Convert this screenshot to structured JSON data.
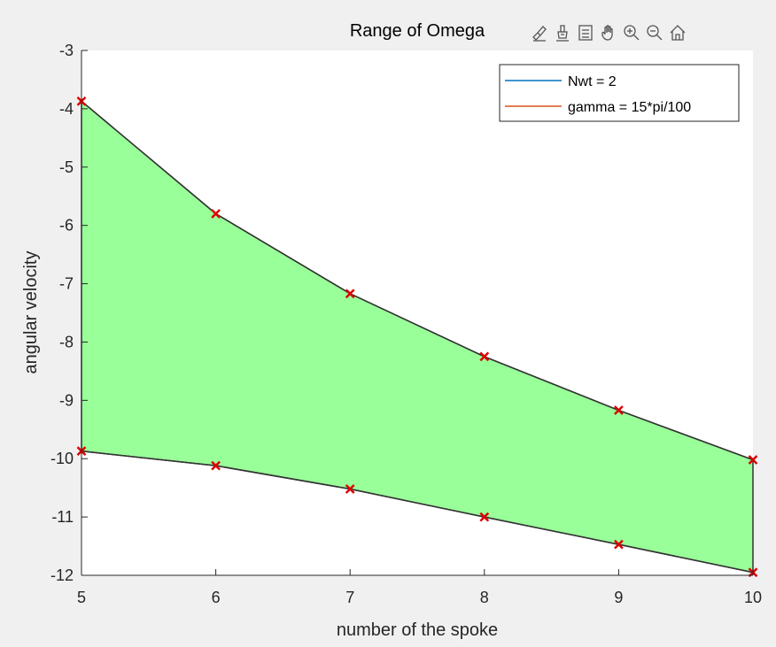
{
  "toolbar": {
    "buttons": [
      {
        "name": "brush-icon",
        "label": "Brush"
      },
      {
        "name": "paint-bucket-icon",
        "label": "Data tips"
      },
      {
        "name": "legend-toggle-icon",
        "label": "Legend"
      },
      {
        "name": "pan-hand-icon",
        "label": "Pan"
      },
      {
        "name": "zoom-in-icon",
        "label": "Zoom in"
      },
      {
        "name": "zoom-out-icon",
        "label": "Zoom out"
      },
      {
        "name": "home-icon",
        "label": "Restore view"
      }
    ]
  },
  "chart_data": {
    "type": "area",
    "title": "Range of Omega",
    "xlabel": "number of the spoke",
    "ylabel": "angular velocity",
    "xlim": [
      5,
      10
    ],
    "ylim": [
      -12,
      -3
    ],
    "xticks": [
      5,
      6,
      7,
      8,
      9,
      10
    ],
    "yticks": [
      -3,
      -4,
      -5,
      -6,
      -7,
      -8,
      -9,
      -10,
      -11,
      -12
    ],
    "grid": false,
    "legend_position": "top-right",
    "legend": [
      {
        "label": "Nwt = 2",
        "color": "#0072bd"
      },
      {
        "label": "gamma = 15*pi/100",
        "color": "#d95319"
      }
    ],
    "x": [
      5,
      6,
      7,
      8,
      9,
      10
    ],
    "upper": [
      -3.87,
      -5.8,
      -7.17,
      -8.25,
      -9.17,
      -10.02
    ],
    "lower": [
      -9.87,
      -10.12,
      -10.52,
      -11.0,
      -11.47,
      -11.95
    ],
    "fill_color": "#99ff99",
    "line_color": "#333333",
    "marker_color": "#dd0000"
  },
  "colors": {
    "axes_bg": "#ffffff",
    "figure_bg": "#f0f0f0",
    "axis_color": "#262626"
  }
}
